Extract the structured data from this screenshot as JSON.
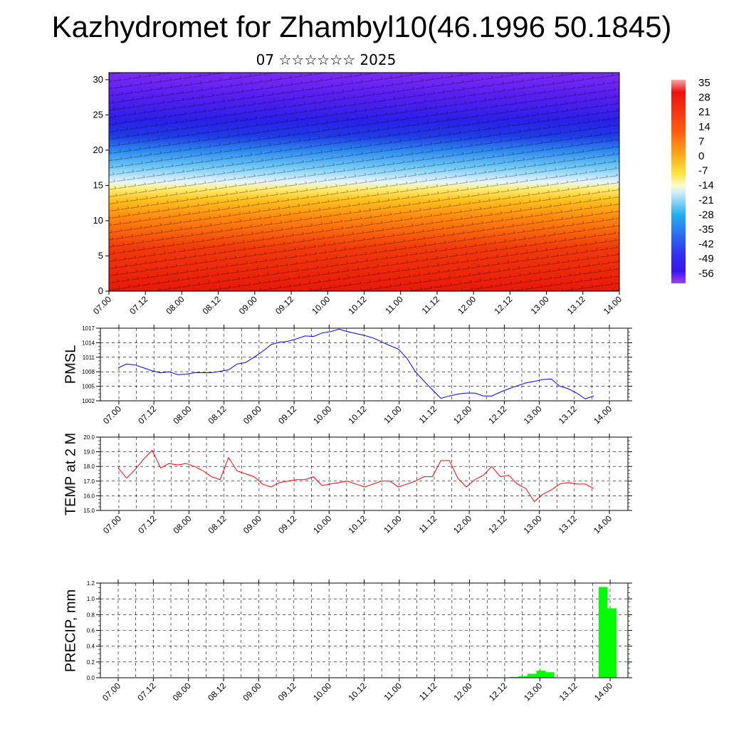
{
  "title": "Kazhydromet for Zhambyl10(46.1996 50.1845)",
  "subtitle": "07 ☆☆☆☆☆☆ 2025",
  "colors": {
    "pmsl": "#0000ff",
    "temp": "#ff0000",
    "precip": "#00ff00"
  },
  "chart_data": [
    {
      "type": "heatmap",
      "description_level": "vertical cross-section",
      "x_ticks": [
        "07.00",
        "07.12",
        "08.00",
        "08.12",
        "09.00",
        "09.12",
        "10.00",
        "10.12",
        "11.00",
        "11.12",
        "12.00",
        "12.12",
        "13.00",
        "13.12",
        "14.00"
      ],
      "y_ticks": [
        "0",
        "5",
        "10",
        "15",
        "20",
        "25",
        "30"
      ],
      "ylim": [
        0,
        31
      ],
      "colorbar": {
        "labels": [
          "35",
          "28",
          "21",
          "14",
          "7",
          "0",
          "-7",
          "-14",
          "-21",
          "-28",
          "-35",
          "-42",
          "-49",
          "-56"
        ],
        "range": [
          -60,
          38
        ]
      }
    },
    {
      "type": "line",
      "ylabel": "PMSL",
      "y_ticks": [
        "1017",
        "1014",
        "1011",
        "1008",
        "1005",
        "1002"
      ],
      "ylim": [
        1002,
        1017
      ],
      "x_ticks": [
        "07.00",
        "07.12",
        "08.00",
        "08.12",
        "09.00",
        "09.12",
        "10.00",
        "10.12",
        "11.00",
        "11.12",
        "12.00",
        "12.12",
        "13.00",
        "13.12",
        "14.00"
      ],
      "values": [
        1008.8,
        1009.6,
        1009.4,
        1008.8,
        1008.2,
        1007.8,
        1008.0,
        1007.4,
        1007.5,
        1007.8,
        1007.8,
        1007.8,
        1008.1,
        1008.4,
        1009.6,
        1009.9,
        1011.0,
        1012.2,
        1013.6,
        1014.1,
        1014.3,
        1014.8,
        1015.4,
        1015.3,
        1016.0,
        1016.3,
        1016.8,
        1016.3,
        1015.9,
        1015.5,
        1015.0,
        1014.2,
        1013.4,
        1012.7,
        1010.8,
        1008.0,
        1006.1,
        1004.3,
        1002.5,
        1003.0,
        1003.4,
        1003.6,
        1003.6,
        1003.0,
        1003.0,
        1003.8,
        1004.5,
        1005.1,
        1005.7,
        1006.0,
        1006.4,
        1006.5,
        1005.0,
        1004.5,
        1003.6,
        1002.4,
        1003.0
      ]
    },
    {
      "type": "line",
      "ylabel": "TEMP at 2 M",
      "y_ticks": [
        "20.0",
        "19.0",
        "18.0",
        "17.0",
        "16.0",
        "15.0"
      ],
      "ylim": [
        15,
        20
      ],
      "x_ticks": [
        "07.00",
        "07.12",
        "08.00",
        "08.12",
        "09.00",
        "09.12",
        "10.00",
        "10.12",
        "11.00",
        "11.12",
        "12.00",
        "12.12",
        "13.00",
        "13.12",
        "14.00"
      ],
      "values": [
        17.9,
        17.2,
        17.8,
        18.5,
        19.1,
        17.9,
        18.2,
        18.1,
        18.2,
        18.0,
        17.7,
        17.3,
        17.1,
        18.6,
        17.7,
        17.5,
        17.3,
        16.8,
        16.6,
        16.9,
        17.0,
        17.1,
        17.1,
        17.3,
        16.7,
        16.8,
        16.9,
        17.0,
        16.8,
        16.6,
        16.8,
        17.0,
        17.0,
        16.6,
        16.8,
        17.0,
        17.3,
        17.3,
        18.4,
        18.4,
        17.2,
        16.6,
        17.1,
        17.4,
        18.0,
        17.3,
        17.4,
        16.8,
        16.5,
        15.6,
        16.1,
        16.4,
        16.8,
        16.9,
        16.8,
        16.8,
        16.5
      ]
    },
    {
      "type": "bar",
      "ylabel": "PRECIP, mm",
      "y_ticks": [
        "1.2",
        "1.0",
        "0.8",
        "0.6",
        "0.4",
        "0.2",
        "0.0"
      ],
      "ylim": [
        0,
        1.2
      ],
      "x_ticks": [
        "07.00",
        "07.12",
        "08.00",
        "08.12",
        "09.00",
        "09.12",
        "10.00",
        "10.12",
        "11.00",
        "11.12",
        "12.00",
        "12.12",
        "13.00",
        "13.12",
        "14.00"
      ],
      "bars": [
        {
          "x": 44,
          "value": 0.01
        },
        {
          "x": 45,
          "value": 0.02
        },
        {
          "x": 46,
          "value": 0.05
        },
        {
          "x": 47,
          "value": 0.09
        },
        {
          "x": 48,
          "value": 0.07
        },
        {
          "x": 54,
          "value": 1.15
        },
        {
          "x": 55,
          "value": 0.88
        }
      ]
    }
  ]
}
